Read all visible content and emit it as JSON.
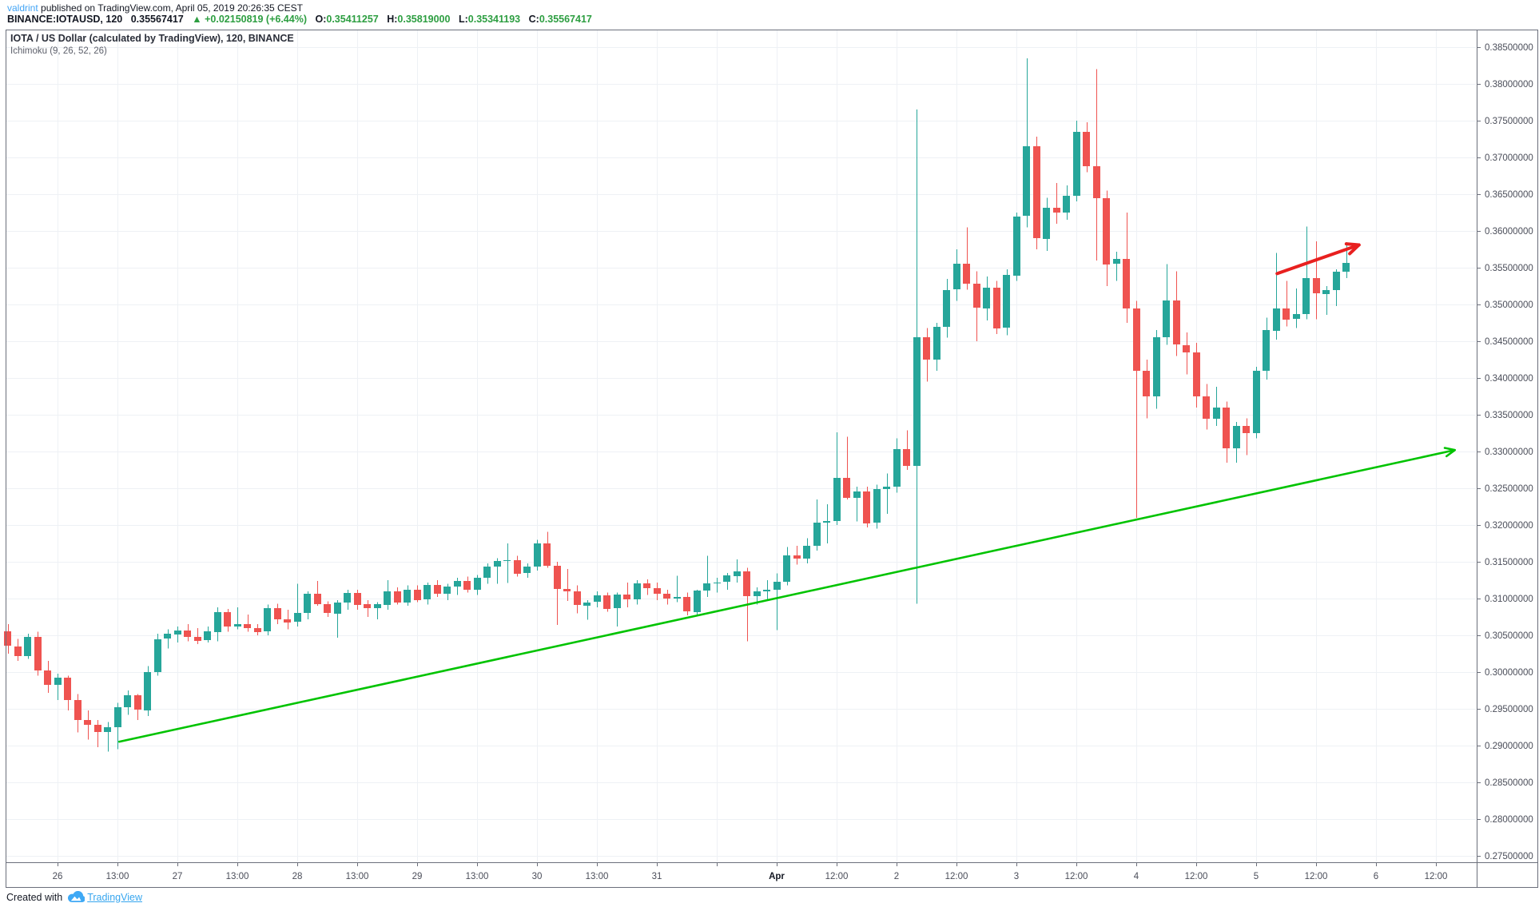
{
  "header": {
    "username": "valdrint",
    "published_suffix": " published on TradingView.com, April 05, 2019 20:26:35 CEST",
    "symbol": "BINANCE:IOTAUSD, 120",
    "last_price": "0.35567417",
    "up_triangle": "▲",
    "change": "+0.02150819 (+6.44%)",
    "o_label": "O:",
    "o_value": "0.35411257",
    "h_label": "H:",
    "h_value": "0.35819000",
    "l_label": "L:",
    "l_value": "0.35341193",
    "c_label": "C:",
    "c_value": "0.35567417"
  },
  "legend": {
    "title": "IOTA / US Dollar (calculated by TradingView), 120, BINANCE",
    "indicator": "Ichimoku (9, 26, 52, 26)"
  },
  "footer": {
    "created_with": "Created with",
    "brand": "TradingView",
    "logo_icon": "cloud-icon"
  },
  "colors": {
    "up": "#26a69a",
    "down": "#ef5350",
    "grid": "#eef1f5",
    "frame": "#6b6f7b",
    "axis_text": "#4a4d59",
    "trendline_green": "#00c300",
    "arrow_red": "#e8201f",
    "link_blue": "#42a4f5",
    "brand_blue": "#37a6ef",
    "quote_green": "#2d9e41"
  },
  "chart_data": {
    "type": "candlestick",
    "symbol": "BINANCE:IOTAUSD",
    "interval_minutes": 120,
    "title": "IOTA / US Dollar (calculated by TradingView), 120, BINANCE",
    "indicator": "Ichimoku (9, 26, 52, 26)",
    "grid": true,
    "y_axis": {
      "min": 0.275,
      "max": 0.385,
      "step": 0.005,
      "decimals": 8
    },
    "x_ticks": [
      "26",
      "13:00",
      "27",
      "13:00",
      "28",
      "13:00",
      "29",
      "13:00",
      "30",
      "13:00",
      "31",
      "",
      "Apr",
      "12:00",
      "2",
      "12:00",
      "3",
      "12:00",
      "4",
      "12:00",
      "5",
      "12:00",
      "6",
      "12:00"
    ],
    "bars_per_tick": 6,
    "first_bar_tick_offset": 5,
    "bars": [
      [
        0.3055,
        0.3065,
        0.3025,
        0.3035
      ],
      [
        0.3035,
        0.3045,
        0.3015,
        0.3022
      ],
      [
        0.3022,
        0.3052,
        0.3018,
        0.3048
      ],
      [
        0.3048,
        0.3055,
        0.2995,
        0.3002
      ],
      [
        0.3002,
        0.3015,
        0.2972,
        0.2982
      ],
      [
        0.2982,
        0.2998,
        0.2962,
        0.2992
      ],
      [
        0.2992,
        0.2995,
        0.2948,
        0.2962
      ],
      [
        0.2962,
        0.297,
        0.2918,
        0.2935
      ],
      [
        0.2935,
        0.2948,
        0.2908,
        0.2928
      ],
      [
        0.2928,
        0.2935,
        0.2898,
        0.2918
      ],
      [
        0.2918,
        0.2932,
        0.2892,
        0.2925
      ],
      [
        0.2925,
        0.2958,
        0.2895,
        0.2952
      ],
      [
        0.2952,
        0.2975,
        0.2942,
        0.2968
      ],
      [
        0.2968,
        0.297,
        0.2935,
        0.2948
      ],
      [
        0.2948,
        0.3008,
        0.294,
        0.3
      ],
      [
        0.3,
        0.3052,
        0.2995,
        0.3045
      ],
      [
        0.3045,
        0.3058,
        0.3032,
        0.3052
      ],
      [
        0.3052,
        0.3062,
        0.304,
        0.3057
      ],
      [
        0.3057,
        0.3065,
        0.3042,
        0.3048
      ],
      [
        0.3048,
        0.306,
        0.3038,
        0.3043
      ],
      [
        0.3043,
        0.3062,
        0.304,
        0.3055
      ],
      [
        0.3055,
        0.3088,
        0.3042,
        0.3082
      ],
      [
        0.3082,
        0.3086,
        0.3055,
        0.3062
      ],
      [
        0.3062,
        0.3088,
        0.3058,
        0.3065
      ],
      [
        0.3065,
        0.3078,
        0.3055,
        0.306
      ],
      [
        0.306,
        0.3065,
        0.305,
        0.3055
      ],
      [
        0.3055,
        0.3092,
        0.305,
        0.3087
      ],
      [
        0.3087,
        0.3093,
        0.3065,
        0.3072
      ],
      [
        0.3072,
        0.3085,
        0.3058,
        0.3068
      ],
      [
        0.3068,
        0.312,
        0.3062,
        0.308
      ],
      [
        0.308,
        0.311,
        0.3072,
        0.3106
      ],
      [
        0.3106,
        0.3124,
        0.309,
        0.3092
      ],
      [
        0.3092,
        0.3096,
        0.3075,
        0.308
      ],
      [
        0.308,
        0.3098,
        0.3047,
        0.3095
      ],
      [
        0.3095,
        0.3112,
        0.3085,
        0.3108
      ],
      [
        0.3108,
        0.3112,
        0.3085,
        0.3092
      ],
      [
        0.3092,
        0.3098,
        0.3075,
        0.3087
      ],
      [
        0.3087,
        0.3095,
        0.3072,
        0.3092
      ],
      [
        0.3092,
        0.3125,
        0.3085,
        0.311
      ],
      [
        0.311,
        0.3115,
        0.3092,
        0.3095
      ],
      [
        0.3095,
        0.3118,
        0.309,
        0.3112
      ],
      [
        0.3112,
        0.3118,
        0.3095,
        0.3098
      ],
      [
        0.3098,
        0.3122,
        0.3092,
        0.3118
      ],
      [
        0.3118,
        0.3125,
        0.3102,
        0.3106
      ],
      [
        0.3106,
        0.312,
        0.3098,
        0.3116
      ],
      [
        0.3116,
        0.3128,
        0.3105,
        0.3124
      ],
      [
        0.3124,
        0.313,
        0.3108,
        0.3112
      ],
      [
        0.3112,
        0.3132,
        0.3105,
        0.3128
      ],
      [
        0.3128,
        0.3148,
        0.312,
        0.3143
      ],
      [
        0.3143,
        0.3155,
        0.312,
        0.3151
      ],
      [
        0.3151,
        0.3175,
        0.3121,
        0.3152
      ],
      [
        0.3152,
        0.3158,
        0.313,
        0.3134
      ],
      [
        0.3134,
        0.3148,
        0.3128,
        0.3143
      ],
      [
        0.3143,
        0.318,
        0.3138,
        0.3175
      ],
      [
        0.3175,
        0.3191,
        0.3142,
        0.3145
      ],
      [
        0.3145,
        0.315,
        0.3064,
        0.3113
      ],
      [
        0.3113,
        0.314,
        0.3097,
        0.311
      ],
      [
        0.311,
        0.3118,
        0.308,
        0.3091
      ],
      [
        0.3091,
        0.3098,
        0.3071,
        0.3095
      ],
      [
        0.3095,
        0.311,
        0.3088,
        0.3104
      ],
      [
        0.3104,
        0.3108,
        0.3082,
        0.3086
      ],
      [
        0.3086,
        0.3108,
        0.3062,
        0.3105
      ],
      [
        0.3105,
        0.3122,
        0.3088,
        0.3099
      ],
      [
        0.3099,
        0.3125,
        0.3092,
        0.3121
      ],
      [
        0.3121,
        0.3126,
        0.3105,
        0.3114
      ],
      [
        0.3114,
        0.3122,
        0.3098,
        0.3106
      ],
      [
        0.3106,
        0.3112,
        0.3092,
        0.31
      ],
      [
        0.31,
        0.3131,
        0.3095,
        0.3102
      ],
      [
        0.3102,
        0.3108,
        0.3077,
        0.3082
      ],
      [
        0.3082,
        0.3112,
        0.3078,
        0.3111
      ],
      [
        0.3111,
        0.3158,
        0.3102,
        0.3121
      ],
      [
        0.3121,
        0.3128,
        0.3108,
        0.3122
      ],
      [
        0.3122,
        0.3135,
        0.3112,
        0.3131
      ],
      [
        0.3131,
        0.3153,
        0.3122,
        0.3137
      ],
      [
        0.3137,
        0.3142,
        0.3042,
        0.3103
      ],
      [
        0.3103,
        0.3115,
        0.3092,
        0.311
      ],
      [
        0.311,
        0.3125,
        0.3098,
        0.3112
      ],
      [
        0.3112,
        0.3134,
        0.3057,
        0.3123
      ],
      [
        0.3123,
        0.317,
        0.3118,
        0.3159
      ],
      [
        0.3159,
        0.3172,
        0.3146,
        0.3155
      ],
      [
        0.3155,
        0.3182,
        0.3148,
        0.3172
      ],
      [
        0.3172,
        0.3235,
        0.3165,
        0.3203
      ],
      [
        0.3203,
        0.3228,
        0.3175,
        0.3205
      ],
      [
        0.3205,
        0.3326,
        0.32,
        0.3264
      ],
      [
        0.3264,
        0.332,
        0.3235,
        0.3237
      ],
      [
        0.3237,
        0.3252,
        0.3205,
        0.3246
      ],
      [
        0.3246,
        0.3252,
        0.3197,
        0.3203
      ],
      [
        0.3203,
        0.3255,
        0.3195,
        0.3249
      ],
      [
        0.3249,
        0.327,
        0.3215,
        0.3252
      ],
      [
        0.3252,
        0.3318,
        0.3244,
        0.3303
      ],
      [
        0.3303,
        0.3329,
        0.3275,
        0.328
      ],
      [
        0.328,
        0.3765,
        0.3093,
        0.3455
      ],
      [
        0.3455,
        0.3468,
        0.3395,
        0.3425
      ],
      [
        0.3425,
        0.3475,
        0.341,
        0.347
      ],
      [
        0.347,
        0.3535,
        0.3455,
        0.352
      ],
      [
        0.352,
        0.3575,
        0.3505,
        0.3555
      ],
      [
        0.3555,
        0.3605,
        0.352,
        0.3528
      ],
      [
        0.3528,
        0.3545,
        0.345,
        0.3495
      ],
      [
        0.3495,
        0.3538,
        0.3478,
        0.3523
      ],
      [
        0.3523,
        0.3532,
        0.346,
        0.3468
      ],
      [
        0.3468,
        0.3548,
        0.3458,
        0.354
      ],
      [
        0.354,
        0.3625,
        0.3532,
        0.362
      ],
      [
        0.362,
        0.3835,
        0.3605,
        0.3715
      ],
      [
        0.3715,
        0.3728,
        0.3575,
        0.359
      ],
      [
        0.359,
        0.3645,
        0.3573,
        0.3632
      ],
      [
        0.3632,
        0.3665,
        0.361,
        0.3625
      ],
      [
        0.3625,
        0.3662,
        0.3615,
        0.3648
      ],
      [
        0.3648,
        0.375,
        0.364,
        0.3735
      ],
      [
        0.3735,
        0.3748,
        0.368,
        0.3688
      ],
      [
        0.3688,
        0.382,
        0.356,
        0.3645
      ],
      [
        0.3645,
        0.3655,
        0.3525,
        0.3555
      ],
      [
        0.3555,
        0.3572,
        0.3532,
        0.3562
      ],
      [
        0.3562,
        0.3625,
        0.3475,
        0.3495
      ],
      [
        0.3495,
        0.3505,
        0.321,
        0.341
      ],
      [
        0.341,
        0.3425,
        0.3345,
        0.3375
      ],
      [
        0.3375,
        0.3465,
        0.3358,
        0.3455
      ],
      [
        0.3455,
        0.3555,
        0.3445,
        0.3505
      ],
      [
        0.3505,
        0.3545,
        0.343,
        0.3445
      ],
      [
        0.3445,
        0.3462,
        0.3405,
        0.3435
      ],
      [
        0.3435,
        0.3448,
        0.336,
        0.3375
      ],
      [
        0.3375,
        0.3392,
        0.333,
        0.3345
      ],
      [
        0.3345,
        0.3388,
        0.3335,
        0.336
      ],
      [
        0.336,
        0.3368,
        0.3285,
        0.3305
      ],
      [
        0.3305,
        0.334,
        0.3285,
        0.3335
      ],
      [
        0.3335,
        0.3345,
        0.3295,
        0.3325
      ],
      [
        0.3325,
        0.3415,
        0.3318,
        0.341
      ],
      [
        0.341,
        0.3482,
        0.3398,
        0.3465
      ],
      [
        0.3465,
        0.357,
        0.3452,
        0.3495
      ],
      [
        0.3495,
        0.3532,
        0.347,
        0.348
      ],
      [
        0.348,
        0.3522,
        0.3468,
        0.3487
      ],
      [
        0.3487,
        0.3606,
        0.348,
        0.3536
      ],
      [
        0.3536,
        0.3586,
        0.348,
        0.3515
      ],
      [
        0.3515,
        0.3525,
        0.3486,
        0.352
      ],
      [
        0.352,
        0.3548,
        0.3498,
        0.3545
      ],
      [
        0.3545,
        0.3585,
        0.3536,
        0.3557
      ]
    ],
    "drawings": {
      "trendline": {
        "from": {
          "bar": 11.1,
          "price": 0.2905
        },
        "to": {
          "bar": 144.9,
          "price": 0.3302
        },
        "arrowhead": true
      },
      "red_arrow": {
        "from": {
          "bar": 127.1,
          "price": 0.3542
        },
        "to": {
          "bar": 135.3,
          "price": 0.3581
        }
      }
    }
  }
}
